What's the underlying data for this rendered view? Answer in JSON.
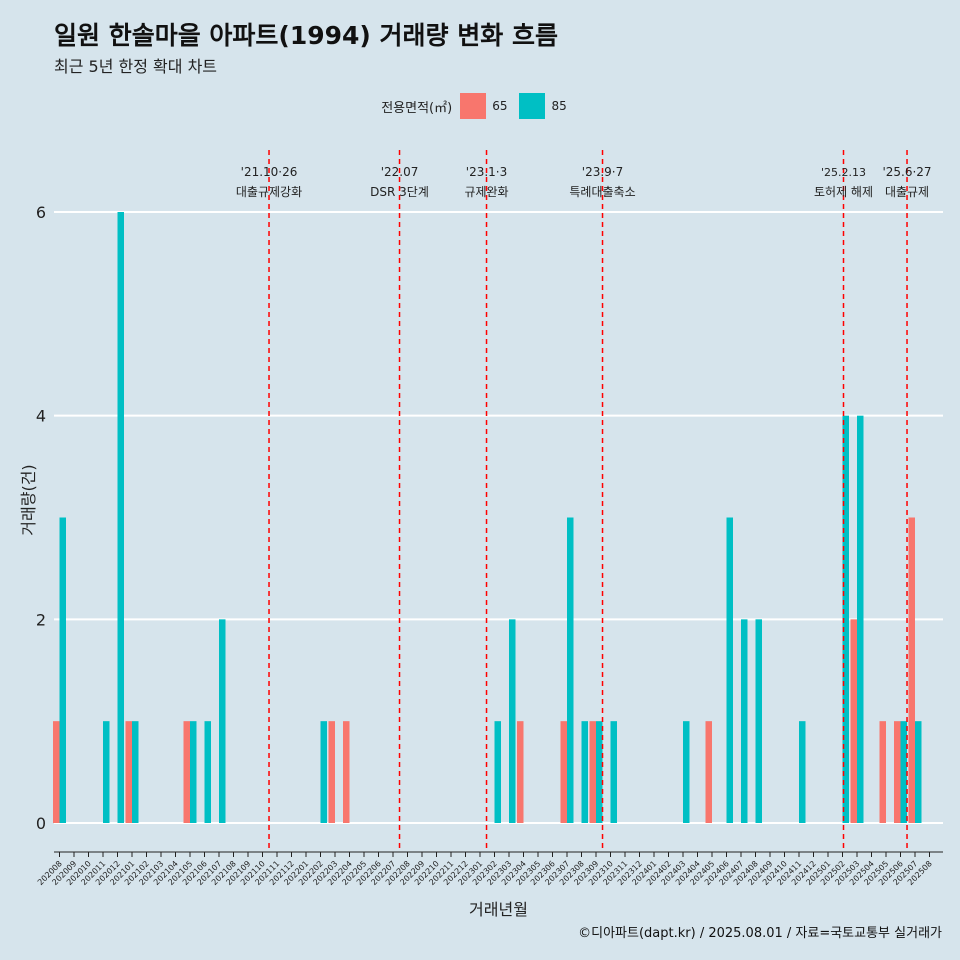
{
  "title": "일원 한솔마을 아파트(1994) 거래량 변화 흐름",
  "subtitle": "최근 5년 한정 확대 차트",
  "caption": "©디아파트(dapt.kr) / 2025.08.01 / 자료=국토교통부 실거래가",
  "legend": {
    "title": "전용면적(㎡)",
    "items": [
      {
        "label": "65",
        "color": "#f8766d"
      },
      {
        "label": "85",
        "color": "#00bfc4"
      }
    ]
  },
  "chart_data": {
    "type": "bar",
    "xlabel": "거래년월",
    "ylabel": "거래량(건)",
    "ylim": [
      0,
      6
    ],
    "yticks": [
      0,
      2,
      4,
      6
    ],
    "grid": true,
    "legend_position": "top",
    "categories": [
      "202008",
      "202009",
      "202010",
      "202011",
      "202012",
      "202101",
      "202102",
      "202103",
      "202104",
      "202105",
      "202106",
      "202107",
      "202108",
      "202109",
      "202110",
      "202111",
      "202112",
      "202201",
      "202202",
      "202203",
      "202204",
      "202205",
      "202206",
      "202207",
      "202208",
      "202209",
      "202210",
      "202211",
      "202212",
      "202301",
      "202302",
      "202303",
      "202304",
      "202305",
      "202306",
      "202307",
      "202308",
      "202309",
      "202310",
      "202311",
      "202312",
      "202401",
      "202402",
      "202403",
      "202404",
      "202405",
      "202406",
      "202407",
      "202408",
      "202409",
      "202410",
      "202411",
      "202412",
      "202501",
      "202502",
      "202503",
      "202504",
      "202505",
      "202506",
      "202507",
      "202508"
    ],
    "series": [
      {
        "name": "65",
        "color": "#f8766d",
        "values": [
          1,
          0,
          0,
          0,
          0,
          1,
          0,
          0,
          0,
          1,
          0,
          0,
          0,
          0,
          0,
          0,
          0,
          0,
          0,
          1,
          1,
          0,
          0,
          0,
          0,
          0,
          0,
          0,
          0,
          0,
          0,
          0,
          1,
          0,
          0,
          1,
          0,
          1,
          0,
          0,
          0,
          0,
          0,
          0,
          0,
          1,
          0,
          0,
          0,
          0,
          0,
          0,
          0,
          0,
          0,
          2,
          0,
          1,
          1,
          3,
          0
        ]
      },
      {
        "name": "85",
        "color": "#00bfc4",
        "values": [
          3,
          0,
          0,
          1,
          6,
          1,
          0,
          0,
          0,
          1,
          1,
          2,
          0,
          0,
          0,
          0,
          0,
          0,
          1,
          0,
          0,
          0,
          0,
          0,
          0,
          0,
          0,
          0,
          0,
          0,
          1,
          2,
          0,
          0,
          0,
          3,
          1,
          1,
          1,
          0,
          0,
          0,
          0,
          1,
          0,
          0,
          3,
          2,
          2,
          0,
          0,
          1,
          0,
          0,
          4,
          4,
          0,
          0,
          1,
          1,
          0
        ]
      }
    ],
    "annotations": [
      {
        "x": "202110",
        "date": "'21.10·26",
        "label": "대출규제강화"
      },
      {
        "x": "202207",
        "date": "'22.07",
        "label": "DSR 3단계"
      },
      {
        "x": "202301",
        "date": "'23.1·3",
        "label": "규제완화"
      },
      {
        "x": "202309",
        "date": "'23.9·7",
        "label": "특례대출축소"
      },
      {
        "x": "202502",
        "date": "'25.2.13",
        "label": "토허제 해제"
      },
      {
        "x": "202506",
        "date": "'25.6·27",
        "label": "대출규제"
      }
    ]
  }
}
